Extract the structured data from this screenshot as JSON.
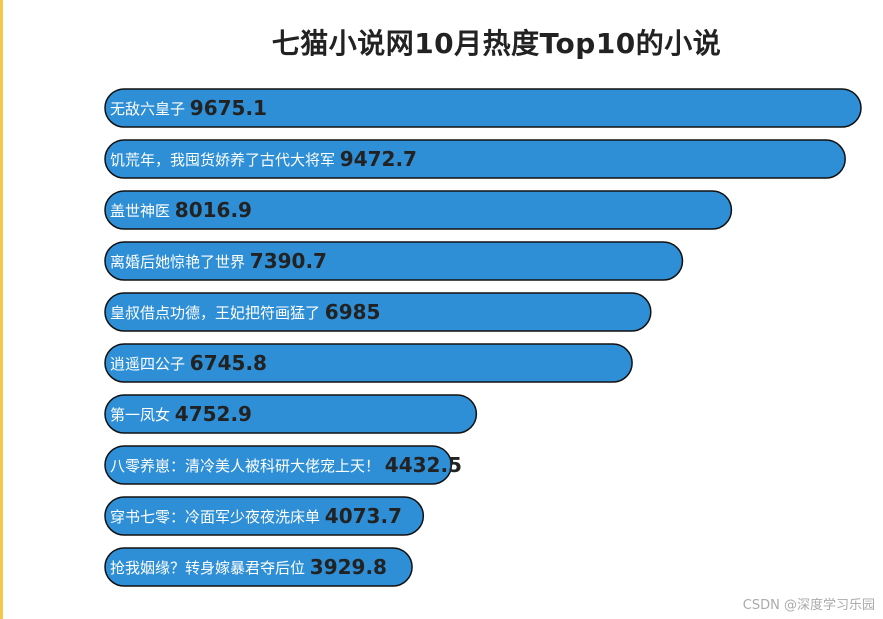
{
  "chart_data": {
    "type": "bar",
    "orientation": "horizontal",
    "title": "七猫小说网10月热度Top10的小说",
    "categories": [
      "无敌六皇子",
      "饥荒年，我囤货娇养了古代大将军",
      "盖世神医",
      "离婚后她惊艳了世界",
      "皇叔借点功德，王妃把符画猛了",
      "逍遥四公子",
      "第一凤女",
      "八零养崽：清冷美人被科研大佬宠上天！",
      "穿书七零：冷面军少夜夜洗床单",
      "抢我姻缘？转身嫁暴君夺后位"
    ],
    "values": [
      9675.1,
      9472.7,
      8016.9,
      7390.7,
      6985,
      6745.8,
      4752.9,
      4432.5,
      4073.7,
      3929.8
    ],
    "value_labels": [
      "9675.1",
      "9472.7",
      "8016.9",
      "7390.7",
      "6985",
      "6745.8",
      "4752.9",
      "4432.5",
      "4073.7",
      "3929.8"
    ],
    "xlabel": "",
    "ylabel": "",
    "grid": false,
    "colors": {
      "bar_fill": "#2e8fd6",
      "bar_stroke": "#111111",
      "label_text": "#ffffff",
      "value_text": "#222222"
    }
  },
  "watermark": "CSDN @深度学习乐园"
}
